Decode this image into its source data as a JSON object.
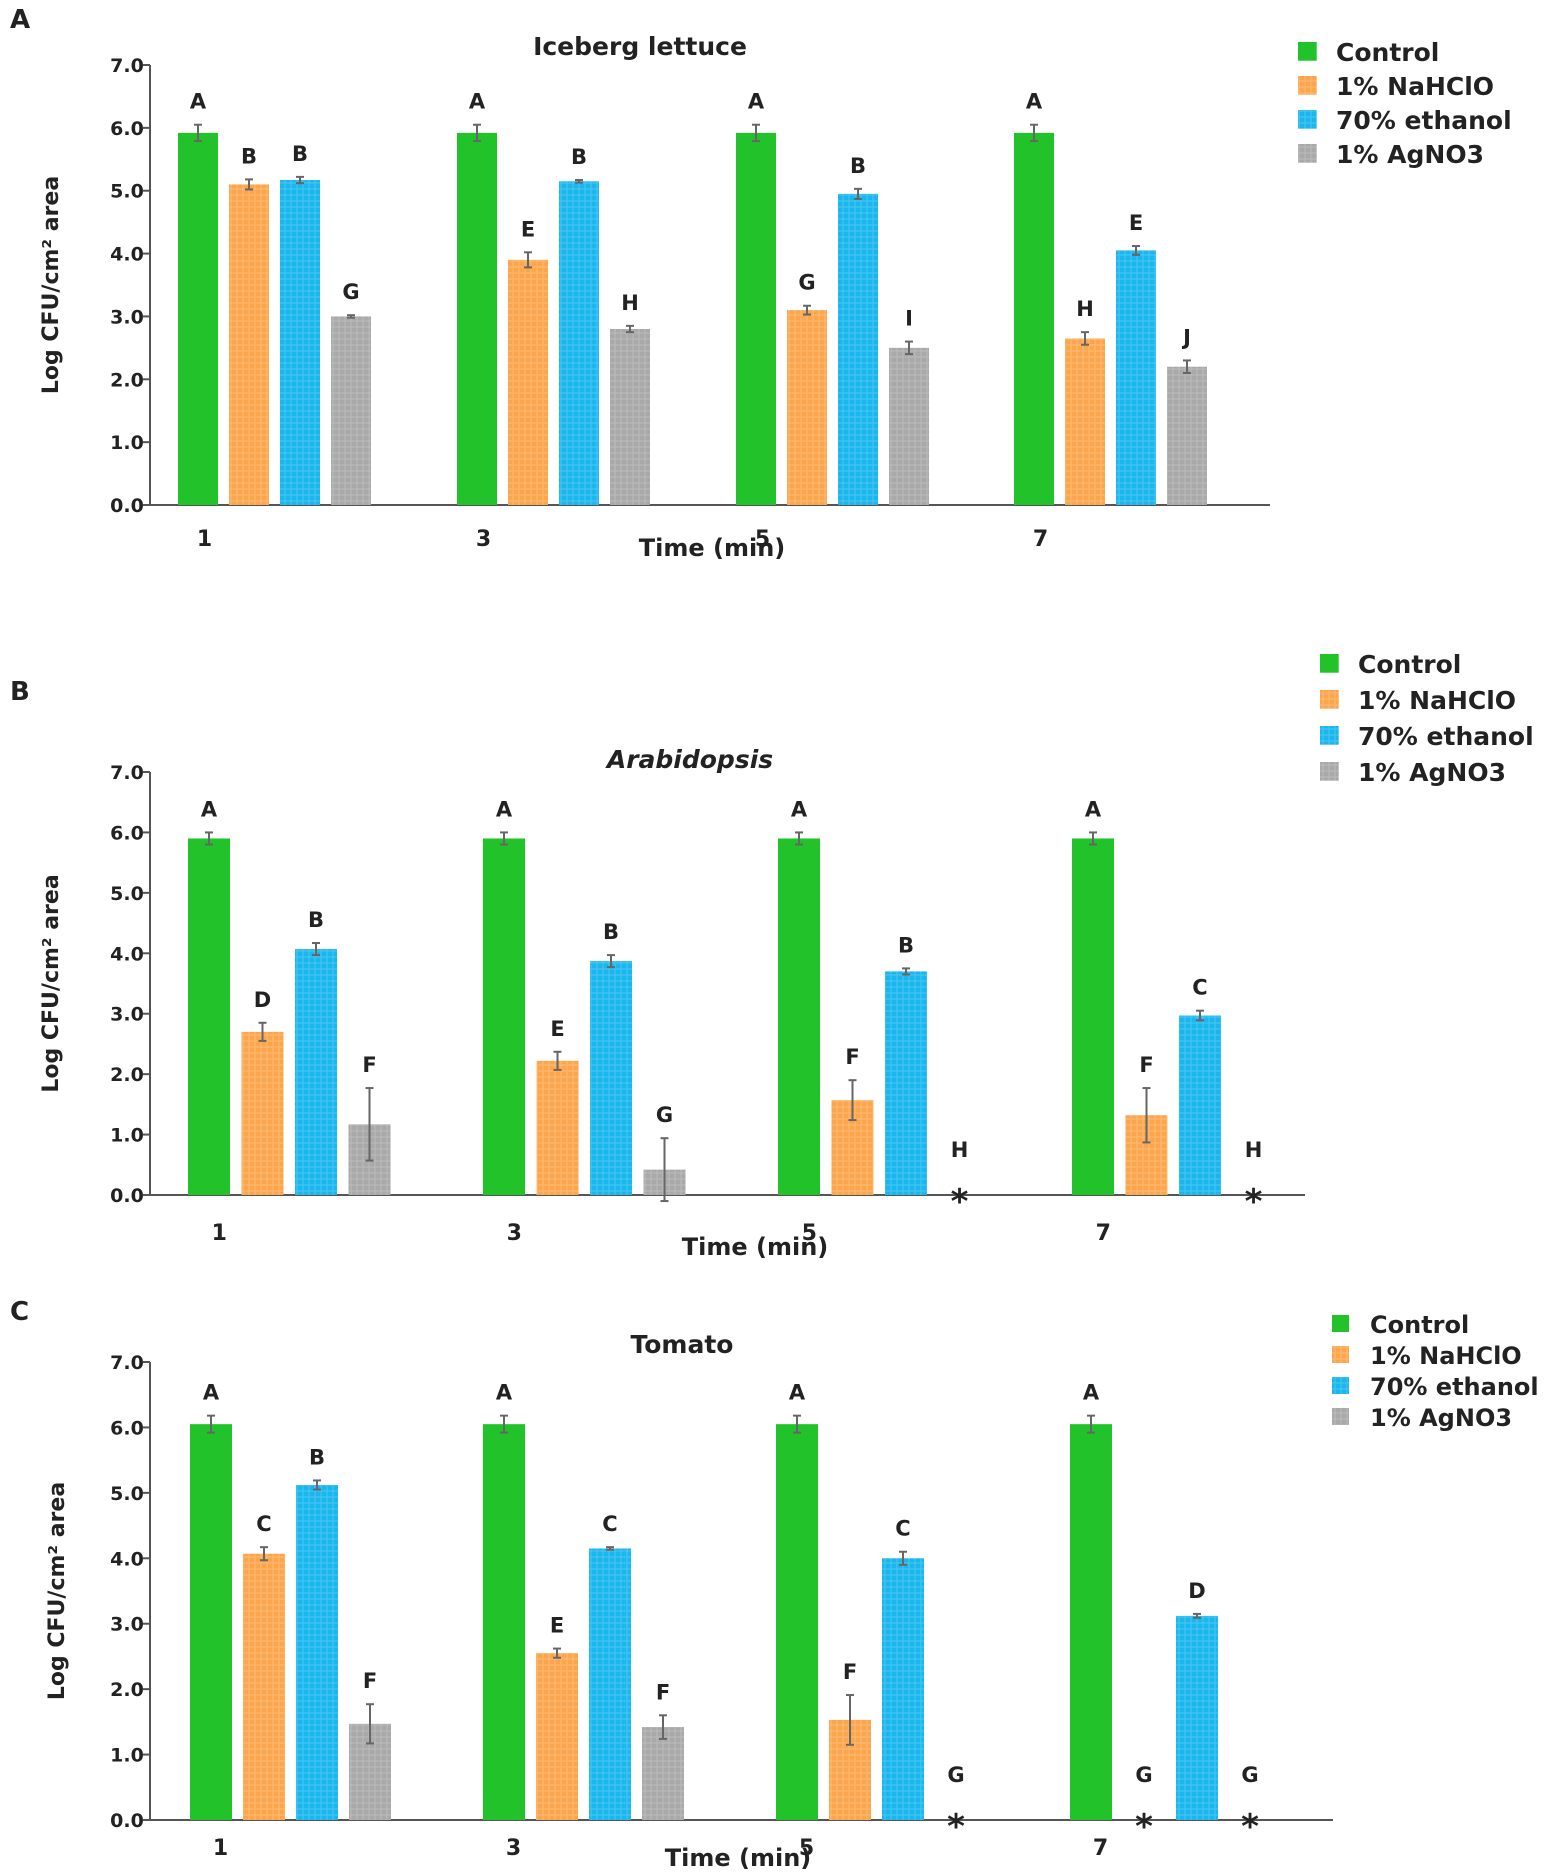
{
  "legend_labels": [
    "Control",
    "1% NaHClO",
    "70% ethanol",
    "1% AgNO3"
  ],
  "chart_data": [
    {
      "panel_label": "A",
      "type": "bar",
      "title": "Iceberg lettuce",
      "xlabel": "Time (min)",
      "ylabel": "Log CFU/cm² area",
      "ylim": [
        0,
        7
      ],
      "yticks": [
        "0.0",
        "1.0",
        "2.0",
        "3.0",
        "4.0",
        "5.0",
        "6.0",
        "7.0"
      ],
      "categories": [
        "1",
        "3",
        "5",
        "7"
      ],
      "legend_position": "top-right",
      "series": [
        {
          "name": "Control",
          "color": "#22c22a",
          "values": [
            5.92,
            5.92,
            5.92,
            5.92
          ],
          "errors": [
            0.13,
            0.13,
            0.13,
            0.13
          ],
          "letters": [
            "A",
            "A",
            "A",
            "A"
          ],
          "stars": [
            false,
            false,
            false,
            false
          ]
        },
        {
          "name": "1% NaHClO",
          "color": "#fba64d",
          "values": [
            5.1,
            3.9,
            3.1,
            2.65
          ],
          "errors": [
            0.08,
            0.12,
            0.07,
            0.1
          ],
          "letters": [
            "B",
            "E",
            "G",
            "H"
          ],
          "stars": [
            false,
            false,
            false,
            false
          ]
        },
        {
          "name": "70% ethanol",
          "color": "#1ab6ee",
          "values": [
            5.17,
            5.15,
            4.95,
            4.05
          ],
          "errors": [
            0.05,
            0.02,
            0.08,
            0.07
          ],
          "letters": [
            "B",
            "B",
            "B",
            "E"
          ],
          "stars": [
            false,
            false,
            false,
            false
          ]
        },
        {
          "name": "1% AgNO3",
          "color": "#a9a9a9",
          "values": [
            3.0,
            2.8,
            2.5,
            2.2
          ],
          "errors": [
            0.02,
            0.05,
            0.1,
            0.1
          ],
          "letters": [
            "G",
            "H",
            "I",
            "J"
          ],
          "stars": [
            false,
            false,
            false,
            false
          ]
        }
      ]
    },
    {
      "panel_label": "B",
      "type": "bar",
      "title": "Arabidopsis",
      "xlabel": "Time (min)",
      "ylabel": "Log CFU/cm² area",
      "ylim": [
        0,
        7
      ],
      "yticks": [
        "0.0",
        "1.0",
        "2.0",
        "3.0",
        "4.0",
        "5.0",
        "6.0",
        "7.0"
      ],
      "categories": [
        "1",
        "3",
        "5",
        "7"
      ],
      "legend_position": "top-right",
      "series": [
        {
          "name": "Control",
          "color": "#22c22a",
          "values": [
            5.9,
            5.9,
            5.9,
            5.9
          ],
          "errors": [
            0.1,
            0.1,
            0.1,
            0.1
          ],
          "letters": [
            "A",
            "A",
            "A",
            "A"
          ],
          "stars": [
            false,
            false,
            false,
            false
          ]
        },
        {
          "name": "1% NaHClO",
          "color": "#fba64d",
          "values": [
            2.7,
            2.22,
            1.57,
            1.32
          ],
          "errors": [
            0.15,
            0.15,
            0.33,
            0.45
          ],
          "letters": [
            "D",
            "E",
            "F",
            "F"
          ],
          "stars": [
            false,
            false,
            false,
            false
          ]
        },
        {
          "name": "70% ethanol",
          "color": "#1ab6ee",
          "values": [
            4.07,
            3.87,
            3.7,
            2.97
          ],
          "errors": [
            0.1,
            0.1,
            0.05,
            0.08
          ],
          "letters": [
            "B",
            "B",
            "B",
            "C"
          ],
          "stars": [
            false,
            false,
            false,
            false
          ]
        },
        {
          "name": "1% AgNO3",
          "color": "#a9a9a9",
          "values": [
            1.17,
            0.42,
            0,
            0
          ],
          "errors": [
            0.6,
            0.52,
            0,
            0
          ],
          "letters": [
            "F",
            "G",
            "H",
            "H"
          ],
          "stars": [
            false,
            false,
            true,
            true
          ]
        }
      ]
    },
    {
      "panel_label": "C",
      "type": "bar",
      "title": "Tomato",
      "xlabel": "Time (min)",
      "ylabel": "Log CFU/cm² area",
      "ylim": [
        0,
        7
      ],
      "yticks": [
        "0.0",
        "1.0",
        "2.0",
        "3.0",
        "4.0",
        "5.0",
        "6.0",
        "7.0"
      ],
      "categories": [
        "1",
        "3",
        "5",
        "7"
      ],
      "legend_position": "top-right",
      "series": [
        {
          "name": "Control",
          "color": "#22c22a",
          "values": [
            6.05,
            6.05,
            6.05,
            6.05
          ],
          "errors": [
            0.13,
            0.13,
            0.13,
            0.13
          ],
          "letters": [
            "A",
            "A",
            "A",
            "A"
          ],
          "stars": [
            false,
            false,
            false,
            false
          ]
        },
        {
          "name": "1% NaHClO",
          "color": "#fba64d",
          "values": [
            4.07,
            2.55,
            1.53,
            0
          ],
          "errors": [
            0.1,
            0.07,
            0.38,
            0
          ],
          "letters": [
            "C",
            "E",
            "F",
            "G"
          ],
          "stars": [
            false,
            false,
            false,
            true
          ]
        },
        {
          "name": "70% ethanol",
          "color": "#1ab6ee",
          "values": [
            5.12,
            4.15,
            4.0,
            3.12
          ],
          "errors": [
            0.07,
            0.02,
            0.1,
            0.03
          ],
          "letters": [
            "B",
            "C",
            "C",
            "D"
          ],
          "stars": [
            false,
            false,
            false,
            false
          ]
        },
        {
          "name": "1% AgNO3",
          "color": "#a9a9a9",
          "values": [
            1.47,
            1.42,
            0,
            0
          ],
          "errors": [
            0.3,
            0.18,
            0,
            0
          ],
          "letters": [
            "F",
            "F",
            "G",
            "G"
          ],
          "stars": [
            false,
            false,
            true,
            true
          ]
        }
      ]
    }
  ]
}
